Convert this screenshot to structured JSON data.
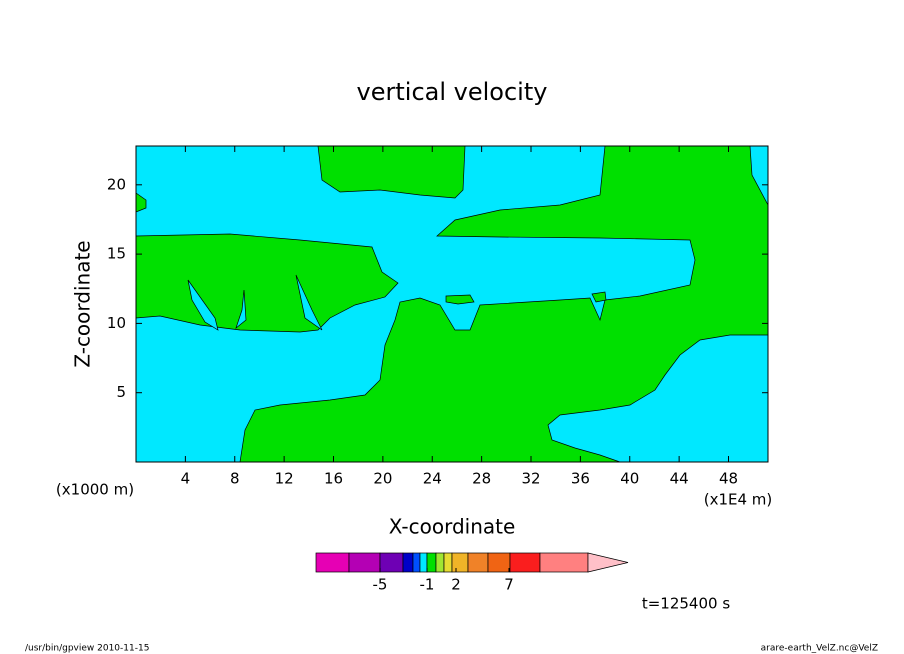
{
  "chart_data": {
    "type": "contour",
    "title": "vertical velocity",
    "x_label": "X-coordinate",
    "y_label": "Z-coordinate",
    "x_unit_left": "(x1000 m)",
    "x_unit_right": "(x1E4 m)",
    "xlim": [
      0,
      51.2
    ],
    "xticks": [
      4,
      8,
      12,
      16,
      20,
      24,
      28,
      32,
      36,
      40,
      44,
      48
    ],
    "ylim": [
      0,
      22.8
    ],
    "yticks": [
      5,
      10,
      15,
      20
    ],
    "colorbar": {
      "colors": [
        "#e600b4",
        "#b400b4",
        "#6e00b4",
        "#0000c8",
        "#0050ff",
        "#00e8ff",
        "#00e000",
        "#a0e632",
        "#e6dc32",
        "#f0b428",
        "#f08228",
        "#f06414",
        "#fa1e1e",
        "#ff8080",
        "#ffc0c8"
      ],
      "ticks": [
        -5,
        -1,
        2,
        7
      ]
    },
    "annotation": "t=125400 s",
    "footer_left": "/usr/bin/gpview  2010-11-15",
    "footer_right": "arare-earth_VelZ.nc@VelZ"
  }
}
